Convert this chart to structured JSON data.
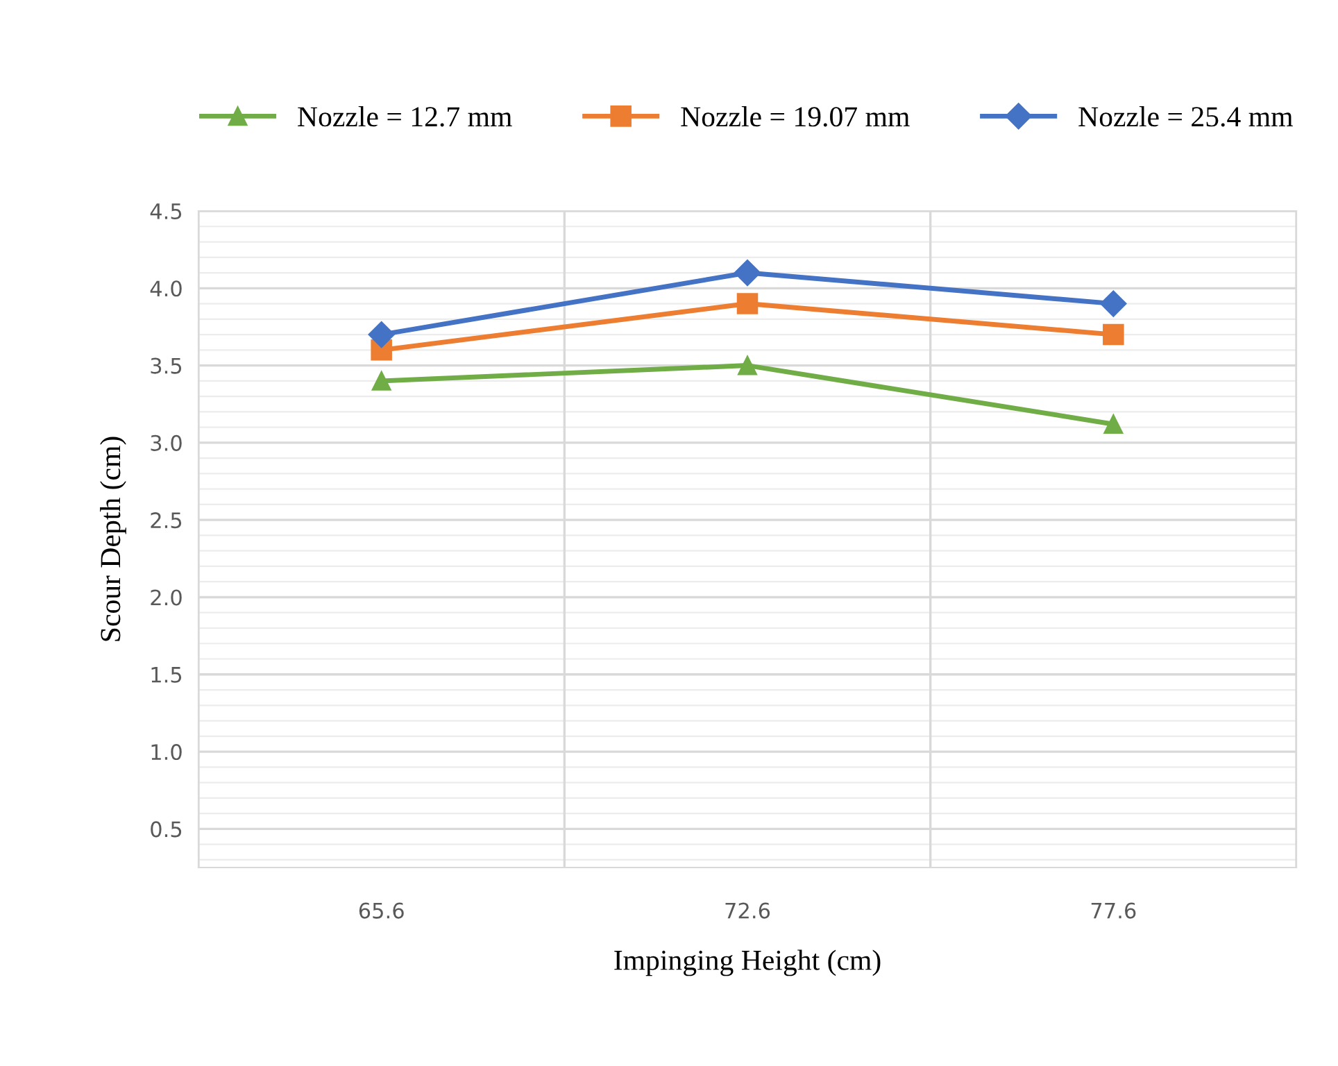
{
  "chart_data": {
    "type": "line",
    "xlabel": "Impinging Height (cm)",
    "ylabel": "Scour Depth (cm)",
    "categories": [
      "65.6",
      "72.6",
      "77.6"
    ],
    "series": [
      {
        "name": "Nozzle = 12.7 mm",
        "color": "#70ad47",
        "marker": "triangle",
        "values": [
          3.4,
          3.5,
          3.12
        ]
      },
      {
        "name": "Nozzle = 19.07 mm",
        "color": "#ed7d31",
        "marker": "square",
        "values": [
          3.6,
          3.9,
          3.7
        ]
      },
      {
        "name": "Nozzle = 25.4 mm",
        "color": "#4472c4",
        "marker": "diamond",
        "values": [
          3.7,
          4.1,
          3.9
        ]
      }
    ],
    "ylim": [
      0.25,
      4.5
    ],
    "yticks": [
      {
        "value": 0.5,
        "label": "0.5"
      },
      {
        "value": 1.0,
        "label": "1.0"
      },
      {
        "value": 1.5,
        "label": "1.5"
      },
      {
        "value": 2.0,
        "label": "2.0"
      },
      {
        "value": 2.5,
        "label": "2.5"
      },
      {
        "value": 3.0,
        "label": "3.0"
      },
      {
        "value": 3.5,
        "label": "3.5"
      },
      {
        "value": 4.0,
        "label": "4.0"
      },
      {
        "value": 4.5,
        "label": "4.5"
      }
    ],
    "grid": true,
    "legend": "top"
  }
}
